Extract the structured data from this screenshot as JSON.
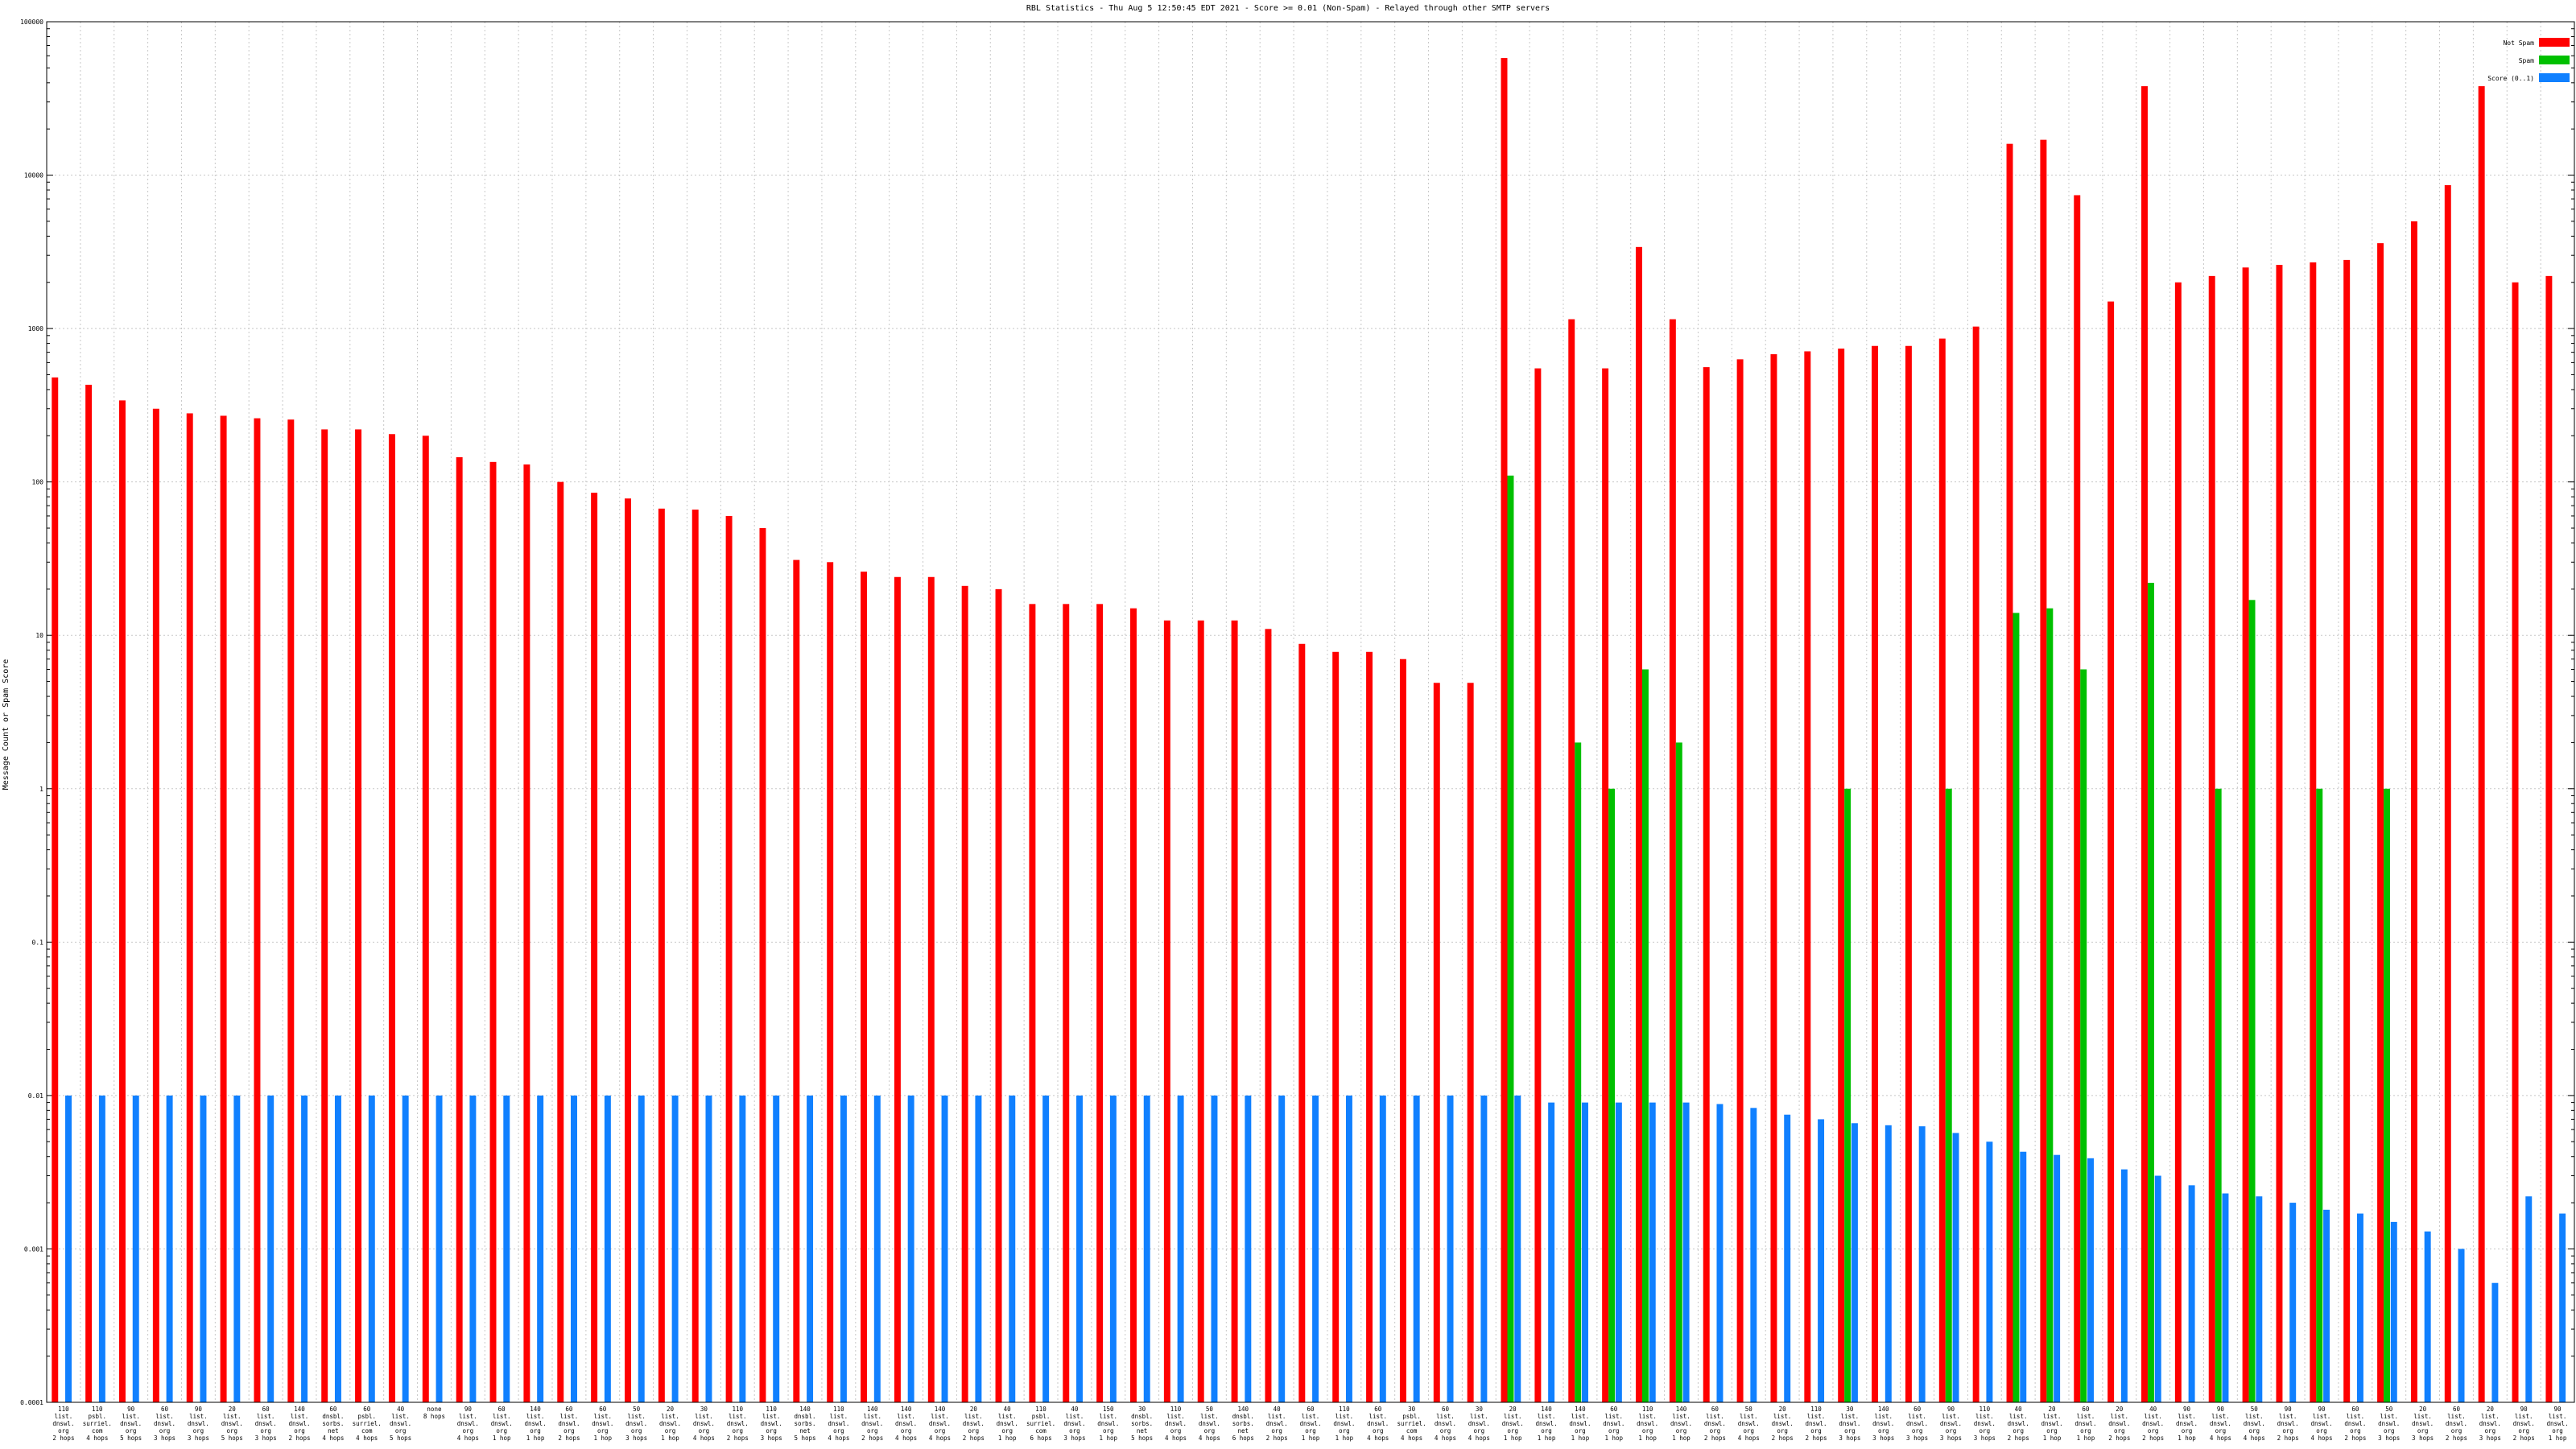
{
  "chart_data": {
    "type": "bar",
    "title": "RBL Statistics - Thu Aug  5 12:50:45 EDT 2021 - Score >= 0.01 (Non-Spam) - Relayed through other SMTP servers",
    "ylabel": "Message Count or Spam Score",
    "xlabel": "",
    "scale": "log",
    "ylim": [
      0.0001,
      100000
    ],
    "y_ticks": [
      "100000",
      "10000",
      "1000",
      "100",
      "10",
      "1",
      "0.1",
      "0.01",
      "0.001",
      "0.0001"
    ],
    "legend_position": "top-right",
    "grid": true,
    "categories": [
      "110 list.dnswl.org 2 hops",
      "110 psbl.surriel.com 4 hops",
      "90 list.dnswl.org 5 hops",
      "60 list.dnswl.org 3 hops",
      "90 list.dnswl.org 3 hops",
      "20 list.dnswl.org 5 hops",
      "60 list.dnswl.org 3 hops",
      "140 list.dnswl.org 2 hops",
      "60 dnsbl.sorbs.net 4 hops",
      "60 psbl.surriel.com 4 hops",
      "40 list.dnswl.org 5 hops",
      "none 8 hops",
      "90 list.dnswl.org 4 hops",
      "60 list.dnswl.org 1 hop",
      "140 list.dnswl.org 1 hop",
      "60 list.dnswl.org 2 hops",
      "60 list.dnswl.org 1 hop",
      "50 list.dnswl.org 3 hops",
      "20 list.dnswl.org 1 hop",
      "30 list.dnswl.org 4 hops",
      "110 list.dnswl.org 2 hops",
      "110 list.dnswl.org 3 hops",
      "140 dnsbl.sorbs.net 5 hops",
      "110 list.dnswl.org 4 hops",
      "140 list.dnswl.org 2 hops",
      "140 list.dnswl.org 4 hops",
      "140 list.dnswl.org 4 hops",
      "20 list.dnswl.org 2 hops",
      "40 list.dnswl.org 1 hop",
      "110 psbl.surriel.com 6 hops",
      "40 list.dnswl.org 3 hops",
      "150 list.dnswl.org 1 hop",
      "30 dnsbl.sorbs.net 5 hops",
      "110 list.dnswl.org 4 hops",
      "50 list.dnswl.org 4 hops",
      "140 dnsbl.sorbs.net 6 hops",
      "40 list.dnswl.org 2 hops",
      "60 list.dnswl.org 1 hop",
      "110 list.dnswl.org 1 hop",
      "60 list.dnswl.org 4 hops",
      "30 psbl.surriel.com 4 hops",
      "60 list.dnswl.org 4 hops",
      "30 list.dnswl.org 4 hops",
      "20 list.dnswl.org 1 hop",
      "140 list.dnswl.org 1 hop",
      "140 list.dnswl.org 1 hop",
      "60 list.dnswl.org 1 hop",
      "110 list.dnswl.org 1 hop",
      "140 list.dnswl.org 1 hop",
      "60 list.dnswl.org 2 hops",
      "50 list.dnswl.org 4 hops",
      "20 list.dnswl.org 2 hops",
      "110 list.dnswl.org 2 hops",
      "30 list.dnswl.org 3 hops",
      "140 list.dnswl.org 3 hops",
      "60 list.dnswl.org 3 hops",
      "90 list.dnswl.org 3 hops",
      "110 list.dnswl.org 3 hops",
      "40 list.dnswl.org 2 hops",
      "20 list.dnswl.org 1 hop",
      "60 list.dnswl.org 1 hop",
      "20 list.dnswl.org 2 hops",
      "40 list.dnswl.org 2 hops",
      "90 list.dnswl.org 1 hop",
      "90 list.dnswl.org 4 hops",
      "50 list.dnswl.org 4 hops",
      "90 list.dnswl.org 2 hops",
      "90 list.dnswl.org 4 hops",
      "60 list.dnswl.org 2 hops",
      "50 list.dnswl.org 3 hops",
      "20 list.dnswl.org 3 hops",
      "60 list.dnswl.org 2 hops",
      "20 list.dnswl.org 3 hops",
      "90 list.dnswl.org 2 hops",
      "90 list.dnswl.org 1 hop"
    ],
    "series": [
      {
        "name": "Not Spam",
        "color": "#ff0000",
        "values": [
          480,
          430,
          340,
          300,
          280,
          270,
          260,
          255,
          220,
          220,
          205,
          200,
          145,
          135,
          130,
          100,
          85,
          78,
          67,
          66,
          60,
          50,
          31,
          30,
          26,
          24,
          24,
          21,
          20,
          16,
          16,
          16,
          15,
          12.5,
          12.5,
          12.5,
          11,
          8.8,
          7.8,
          7.8,
          7,
          4.9,
          4.9,
          58000,
          550,
          1150,
          550,
          3400,
          1150,
          560,
          630,
          680,
          710,
          740,
          770,
          770,
          860,
          1030,
          16000,
          17000,
          7400,
          1500,
          38000,
          2000,
          2200,
          2500,
          2600,
          2700,
          2800,
          3600,
          5000,
          8600,
          38000,
          2000,
          2200
        ]
      },
      {
        "name": "Spam",
        "color": "#00c000",
        "values": [
          null,
          null,
          null,
          null,
          null,
          null,
          null,
          null,
          null,
          null,
          null,
          null,
          null,
          null,
          null,
          null,
          null,
          null,
          null,
          null,
          null,
          null,
          null,
          null,
          null,
          null,
          null,
          null,
          null,
          null,
          null,
          null,
          null,
          null,
          null,
          null,
          null,
          null,
          null,
          null,
          null,
          null,
          null,
          110,
          null,
          2,
          1,
          6,
          2,
          null,
          null,
          null,
          null,
          1,
          null,
          null,
          1,
          null,
          14,
          15,
          6,
          null,
          22,
          null,
          1,
          17,
          null,
          1,
          null,
          1,
          null,
          null,
          null,
          null,
          null
        ]
      },
      {
        "name": "Score (0..1)",
        "color": "#1080ff",
        "values": [
          0.01,
          0.01,
          0.01,
          0.01,
          0.01,
          0.01,
          0.01,
          0.01,
          0.01,
          0.01,
          0.01,
          0.01,
          0.01,
          0.01,
          0.01,
          0.01,
          0.01,
          0.01,
          0.01,
          0.01,
          0.01,
          0.01,
          0.01,
          0.01,
          0.01,
          0.01,
          0.01,
          0.01,
          0.01,
          0.01,
          0.01,
          0.01,
          0.01,
          0.01,
          0.01,
          0.01,
          0.01,
          0.01,
          0.01,
          0.01,
          0.01,
          0.01,
          0.01,
          0.01,
          0.009,
          0.009,
          0.009,
          0.009,
          0.009,
          0.0088,
          0.0083,
          0.0075,
          0.007,
          0.0066,
          0.0064,
          0.0063,
          0.0057,
          0.005,
          0.0043,
          0.0041,
          0.0039,
          0.0033,
          0.003,
          0.0026,
          0.0023,
          0.0022,
          0.002,
          0.0018,
          0.0017,
          0.0015,
          0.0013,
          0.001,
          0.0006,
          0.0022,
          0.0017
        ]
      }
    ]
  }
}
